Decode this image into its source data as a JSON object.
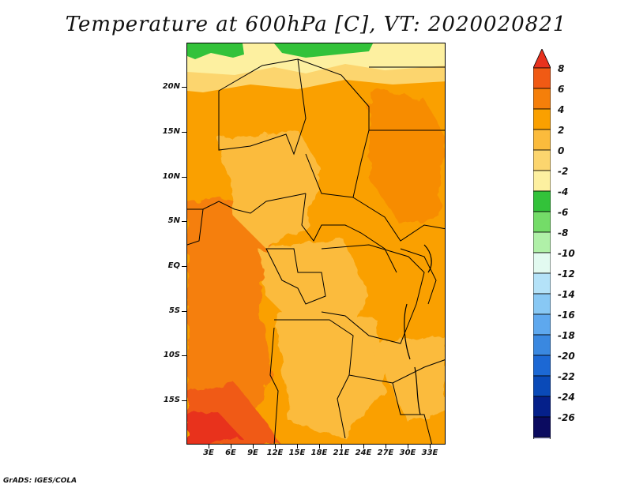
{
  "title": "Temperature at 600hPa [C], VT: 2020020821",
  "credit": "GrADS: IGES/COLA",
  "map": {
    "lat_labels": [
      "20N",
      "15N",
      "10N",
      "5N",
      "EQ",
      "5S",
      "10S",
      "15S"
    ],
    "lon_labels": [
      "3E",
      "6E",
      "9E",
      "12E",
      "15E",
      "18E",
      "21E",
      "24E",
      "27E",
      "30E",
      "33E"
    ]
  },
  "colorbar": {
    "levels": [
      "8",
      "6",
      "4",
      "2",
      "0",
      "-2",
      "-4",
      "-6",
      "-8",
      "-10",
      "-12",
      "-14",
      "-16",
      "-18",
      "-20",
      "-22",
      "-24",
      "-26"
    ],
    "colors": [
      "#e8321e",
      "#f05a14",
      "#f57f0a",
      "#faa000",
      "#fbbb3c",
      "#fcd56e",
      "#fdf0a0",
      "#33c23a",
      "#74dc68",
      "#b0f0a8",
      "#e2faf0",
      "#b4e2f8",
      "#88c8f4",
      "#5ea8ee",
      "#3a88e0",
      "#1c68d4",
      "#0a4ab8",
      "#05208a",
      "#0b0b60",
      "#dcdcf8"
    ]
  }
}
